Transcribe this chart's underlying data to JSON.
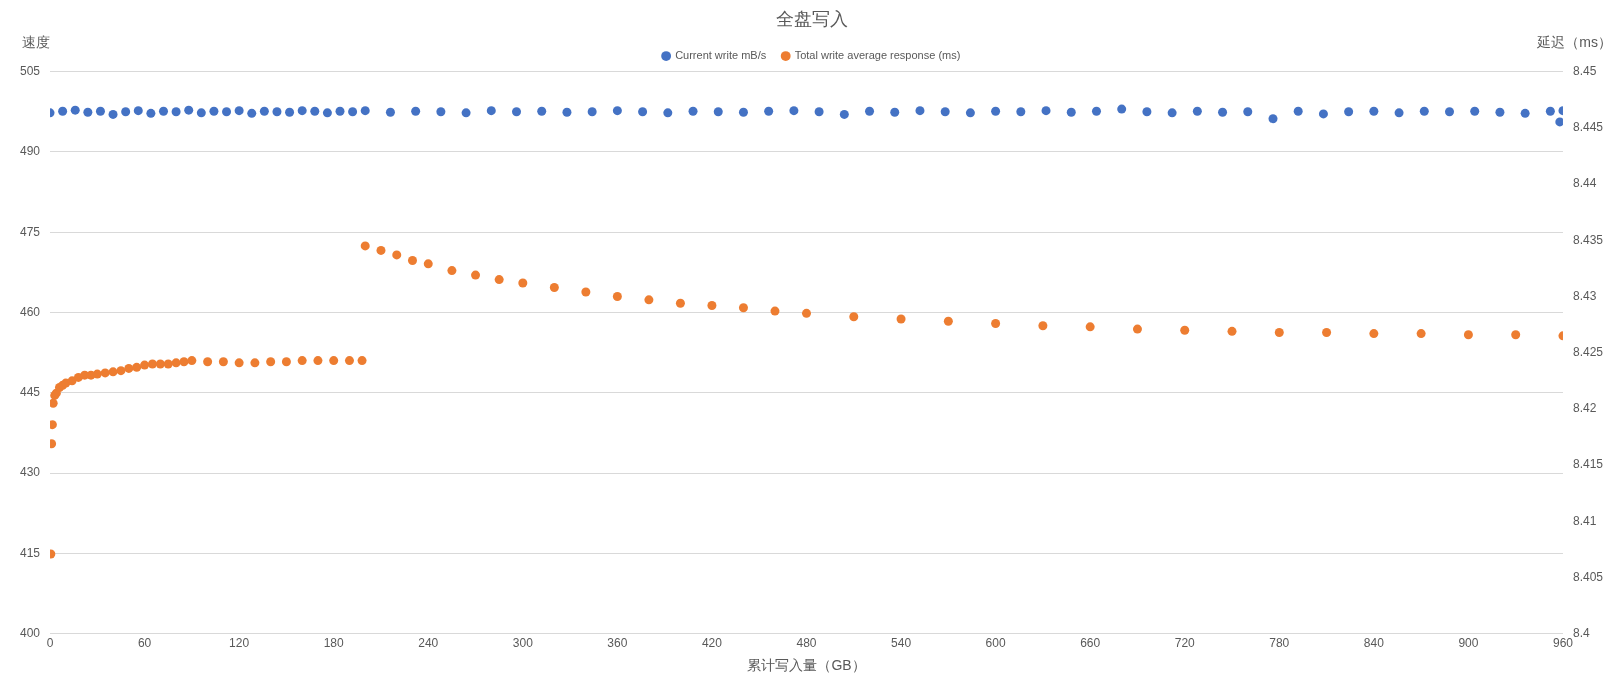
{
  "chart_data": {
    "type": "scatter",
    "title": "全盘写入",
    "xlabel": "累计写入量（GB）",
    "ylabel": "速度",
    "y2label": "延迟（ms）",
    "xlim": [
      0,
      960
    ],
    "xticks": [
      0,
      60,
      120,
      180,
      240,
      300,
      360,
      420,
      480,
      540,
      600,
      660,
      720,
      780,
      840,
      900,
      960
    ],
    "ylim": [
      400,
      505
    ],
    "yticks": [
      400,
      415,
      430,
      445,
      460,
      475,
      490,
      505
    ],
    "y2lim": [
      8.4,
      8.45
    ],
    "y2ticks": [
      8.4,
      8.405,
      8.41,
      8.415,
      8.42,
      8.425,
      8.43,
      8.435,
      8.44,
      8.445,
      8.45
    ],
    "grid": "y",
    "legend": "top",
    "marker": "circle",
    "series": [
      {
        "name": "Current write mB/s",
        "color": "#4472c4",
        "x": [
          0,
          8,
          16,
          24,
          32,
          40,
          48,
          56,
          64,
          72,
          80,
          88,
          96,
          104,
          112,
          120,
          128,
          136,
          144,
          152,
          160,
          168,
          176,
          184,
          192,
          200,
          216,
          232,
          248,
          264,
          280,
          296,
          312,
          328,
          344,
          360,
          376,
          392,
          408,
          424,
          440,
          456,
          472,
          488,
          504,
          520,
          536,
          552,
          568,
          584,
          600,
          616,
          632,
          648,
          664,
          680,
          696,
          712,
          728,
          744,
          760,
          776,
          792,
          808,
          824,
          840,
          856,
          872,
          888,
          904,
          920,
          936,
          952,
          958,
          960
        ],
        "values": [
          497.3,
          497.6,
          497.8,
          497.4,
          497.6,
          497,
          497.5,
          497.7,
          497.2,
          497.6,
          497.5,
          497.8,
          497.3,
          497.6,
          497.5,
          497.7,
          497.2,
          497.6,
          497.5,
          497.4,
          497.7,
          497.6,
          497.3,
          497.6,
          497.5,
          497.7,
          497.4,
          497.6,
          497.5,
          497.3,
          497.7,
          497.5,
          497.6,
          497.4,
          497.5,
          497.7,
          497.5,
          497.3,
          497.6,
          497.5,
          497.4,
          497.6,
          497.7,
          497.5,
          497,
          497.6,
          497.4,
          497.7,
          497.5,
          497.3,
          497.6,
          497.5,
          497.7,
          497.4,
          497.6,
          498,
          497.5,
          497.3,
          497.6,
          497.4,
          497.5,
          496.2,
          497.6,
          497.1,
          497.5,
          497.6,
          497.3,
          497.6,
          497.5,
          497.6,
          497.4,
          497.2,
          497.6,
          495.6,
          497.7
        ]
      },
      {
        "name": "Total write average response (ms)",
        "color": "#ed7d31",
        "axis": "y2",
        "x": [
          0.5,
          1,
          1.5,
          2,
          3,
          4,
          6,
          8,
          10,
          14,
          18,
          22,
          26,
          30,
          35,
          40,
          45,
          50,
          55,
          60,
          65,
          70,
          75,
          80,
          85,
          90,
          100,
          110,
          120,
          130,
          140,
          150,
          160,
          170,
          180,
          190,
          198,
          200,
          210,
          220,
          230,
          240,
          255,
          270,
          285,
          300,
          320,
          340,
          360,
          380,
          400,
          420,
          440,
          460,
          480,
          510,
          540,
          570,
          600,
          630,
          660,
          690,
          720,
          750,
          780,
          810,
          840,
          870,
          900,
          930,
          960
        ],
        "values": [
          8.4071,
          8.4169,
          8.4186,
          8.4205,
          8.4212,
          8.4214,
          8.4219,
          8.4221,
          8.4223,
          8.4225,
          8.4228,
          8.423,
          8.423,
          8.4231,
          8.4232,
          8.4233,
          8.4234,
          8.4236,
          8.4237,
          8.4239,
          8.424,
          8.424,
          8.424,
          8.4241,
          8.4242,
          8.4243,
          8.4242,
          8.4242,
          8.4241,
          8.4241,
          8.4242,
          8.4242,
          8.4243,
          8.4243,
          8.4243,
          8.4243,
          8.4243,
          8.4345,
          8.4341,
          8.4337,
          8.4332,
          8.4329,
          8.4323,
          8.4319,
          8.4315,
          8.4312,
          8.4308,
          8.4304,
          8.43,
          8.4297,
          8.4294,
          8.4292,
          8.429,
          8.4287,
          8.4285,
          8.4282,
          8.428,
          8.4278,
          8.4276,
          8.4274,
          8.4273,
          8.4271,
          8.427,
          8.4269,
          8.4268,
          8.4268,
          8.4267,
          8.4267,
          8.4266,
          8.4266,
          8.4265
        ]
      }
    ]
  }
}
